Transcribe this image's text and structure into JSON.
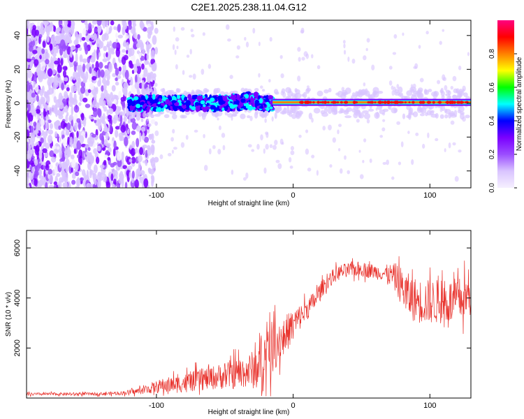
{
  "title": "C2E1.2025.238.11.04.G12",
  "chart_data": [
    {
      "type": "heatmap",
      "xlabel": "Height of straight line (km)",
      "ylabel": "Frequency (Hz)",
      "xlim": [
        -195,
        130
      ],
      "ylim": [
        -50,
        49
      ],
      "xticks": [
        -100,
        0,
        100
      ],
      "yticks": [
        -40,
        -20,
        0,
        20,
        40
      ],
      "colorbar": {
        "label": "Normalized spectral amplitude",
        "range": [
          0,
          1
        ],
        "ticks": [
          0.0,
          0.2,
          0.4,
          0.6,
          0.8
        ],
        "colors": [
          "#f6f0ff",
          "#d9c4ff",
          "#9b4dff",
          "#7a00ff",
          "#0000ff",
          "#00ffff",
          "#00ff00",
          "#ffff00",
          "#ff8000",
          "#ff0000",
          "#ff0080"
        ]
      },
      "features": [
        {
          "name": "diffuse noise",
          "x_range": [
            -195,
            -110
          ],
          "y_range": [
            -50,
            49
          ],
          "amplitude": 0.15
        },
        {
          "name": "signal band (scattered)",
          "x_range": [
            -120,
            -15
          ],
          "center_hz": 0,
          "width_hz": 8,
          "amplitude": 0.3
        },
        {
          "name": "signal band (coherent)",
          "x_range": [
            -15,
            130
          ],
          "center_hz": 0.5,
          "width_hz": 2,
          "amplitude": 0.85
        }
      ]
    },
    {
      "type": "line",
      "xlabel": "Height of straight line (km)",
      "ylabel": "SNR (10 * v/v)",
      "xlim": [
        -195,
        130
      ],
      "ylim": [
        0,
        6700
      ],
      "xticks": [
        -100,
        0,
        100
      ],
      "yticks": [
        2000,
        4000,
        6000
      ],
      "series": [
        {
          "name": "SNR",
          "color": "#e8302a",
          "x": [
            -195,
            -180,
            -160,
            -140,
            -125,
            -115,
            -105,
            -95,
            -85,
            -75,
            -65,
            -55,
            -45,
            -35,
            -28,
            -22,
            -18,
            -14,
            -10,
            -6,
            -2,
            2,
            6,
            10,
            15,
            20,
            25,
            30,
            35,
            40,
            45,
            50,
            55,
            60,
            65,
            70,
            75,
            80,
            85,
            90,
            95,
            100,
            105,
            110,
            115,
            120,
            125,
            130
          ],
          "y": [
            150,
            160,
            160,
            170,
            200,
            260,
            380,
            500,
            550,
            650,
            750,
            850,
            950,
            1050,
            1150,
            1400,
            1800,
            2100,
            2300,
            2500,
            2800,
            3050,
            3300,
            3550,
            3850,
            4300,
            4650,
            4900,
            5050,
            5100,
            5150,
            5150,
            5100,
            5050,
            5000,
            4950,
            4800,
            4400,
            4050,
            3900,
            3850,
            3850,
            3850,
            3850,
            3850,
            3900,
            4000,
            4100
          ]
        }
      ],
      "noise_amplitude": [
        60,
        60,
        60,
        60,
        80,
        120,
        200,
        300,
        350,
        400,
        450,
        500,
        600,
        650,
        800,
        1200,
        1200,
        1000,
        900,
        800,
        700,
        600,
        500,
        450,
        400,
        350,
        300,
        300,
        300,
        300,
        300,
        300,
        300,
        300,
        300,
        400,
        600,
        800,
        900,
        900,
        900,
        900,
        900,
        900,
        900,
        900,
        900,
        900
      ]
    }
  ]
}
